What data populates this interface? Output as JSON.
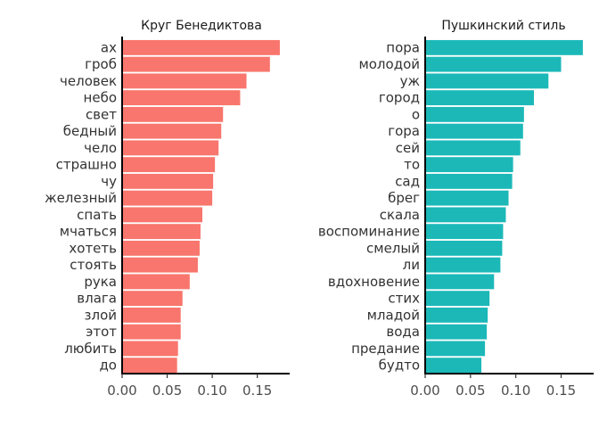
{
  "chart_data": [
    {
      "type": "bar",
      "orientation": "horizontal",
      "title": "Круг Бенедиктова",
      "color": "#F8766D",
      "categories": [
        "ах",
        "гроб",
        "человек",
        "небо",
        "свет",
        "бедный",
        "чело",
        "страшно",
        "чу",
        "железный",
        "спать",
        "мчаться",
        "хотеть",
        "стоять",
        "рука",
        "влага",
        "злой",
        "этот",
        "любить",
        "до"
      ],
      "values": [
        0.175,
        0.164,
        0.138,
        0.131,
        0.112,
        0.11,
        0.107,
        0.103,
        0.101,
        0.1,
        0.089,
        0.087,
        0.086,
        0.084,
        0.075,
        0.067,
        0.065,
        0.065,
        0.062,
        0.061
      ],
      "xlim": [
        0,
        0.18
      ],
      "xticks": [
        0.0,
        0.05,
        0.1,
        0.15
      ],
      "xtick_labels": [
        "0.00",
        "0.05",
        "0.10",
        "0.15"
      ],
      "grid": false
    },
    {
      "type": "bar",
      "orientation": "horizontal",
      "title": "Пушкинский стиль",
      "color": "#1CB8B8",
      "categories": [
        "пора",
        "молодой",
        "уж",
        "город",
        "о",
        "гора",
        "сей",
        "то",
        "сад",
        "брег",
        "скала",
        "воспоминание",
        "смелый",
        "ли",
        "вдохновение",
        "стих",
        "младой",
        "вода",
        "предание",
        "будто"
      ],
      "values": [
        0.174,
        0.15,
        0.136,
        0.12,
        0.109,
        0.108,
        0.105,
        0.097,
        0.096,
        0.092,
        0.089,
        0.086,
        0.085,
        0.083,
        0.076,
        0.071,
        0.069,
        0.068,
        0.066,
        0.062
      ],
      "xlim": [
        0,
        0.18
      ],
      "xticks": [
        0.0,
        0.05,
        0.1,
        0.15
      ],
      "xtick_labels": [
        "0.00",
        "0.05",
        "0.10",
        "0.15"
      ],
      "grid": false
    }
  ]
}
